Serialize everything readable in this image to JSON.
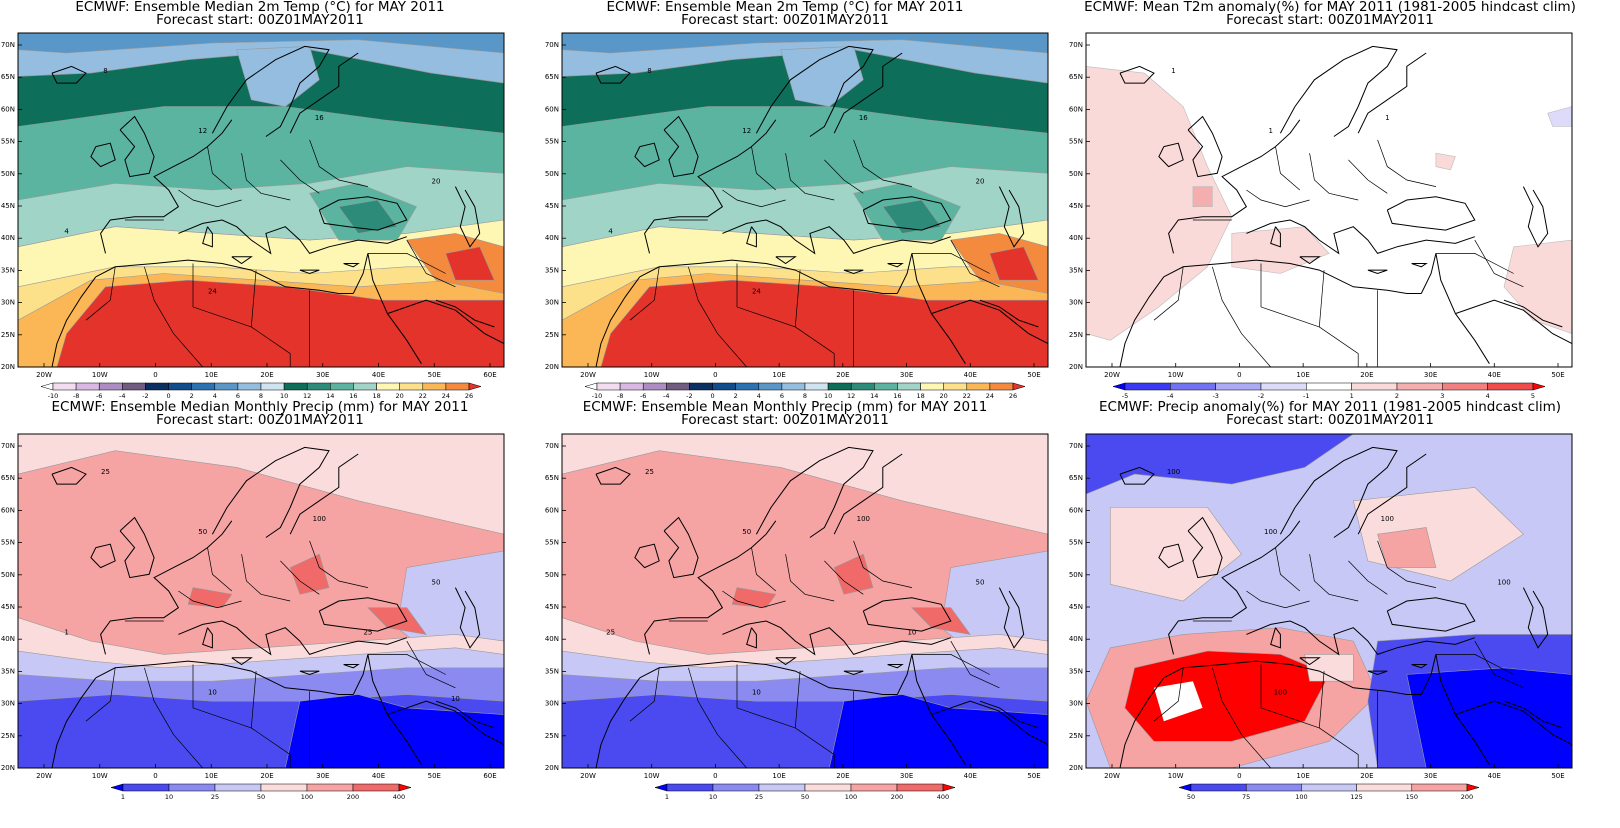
{
  "panels": [
    {
      "id": "p1",
      "title": "ECMWF: Ensemble Median 2m Temp (°C) for MAY 2011",
      "subtitle": "Forecast start: 00Z01MAY2011",
      "field": "temp",
      "lon_labels": [
        "20W",
        "10W",
        "0",
        "10E",
        "20E",
        "30E",
        "40E",
        "50E",
        "60E"
      ],
      "lat_labels": [
        "70N",
        "65N",
        "60N",
        "55N",
        "50N",
        "45N",
        "40N",
        "35N",
        "30N",
        "25N",
        "20N"
      ],
      "colorbar": {
        "labels": [
          "-10",
          "-8",
          "-6",
          "-4",
          "-2",
          "0",
          "2",
          "4",
          "6",
          "8",
          "10",
          "12",
          "14",
          "16",
          "18",
          "20",
          "22",
          "24",
          "26"
        ],
        "colors": [
          "#ffffff",
          "#f1dcf0",
          "#dbb7e3",
          "#ad8cc4",
          "#6f5c80",
          "#0b2f63",
          "#114d8c",
          "#2b72b3",
          "#5997c9",
          "#94bde0",
          "#d0e3f1",
          "#0d6f5a",
          "#2d8c79",
          "#5ab4a0",
          "#a0d4c7",
          "#fdf7b3",
          "#fde08a",
          "#fbb755",
          "#f38a3e",
          "#e4332a"
        ]
      },
      "contour_labels": [
        "8",
        "12",
        "16",
        "20",
        "24",
        "4"
      ]
    },
    {
      "id": "p2",
      "title": "ECMWF: Ensemble Mean 2m Temp (°C) for MAY 2011",
      "subtitle": "Forecast start: 00Z01MAY2011",
      "field": "temp",
      "lon_labels": [
        "20W",
        "10W",
        "0",
        "10E",
        "20E",
        "30E",
        "40E",
        "50E"
      ],
      "lat_labels": [
        "70N",
        "65N",
        "60N",
        "55N",
        "50N",
        "45N",
        "40N",
        "35N",
        "30N",
        "25N",
        "20N"
      ],
      "colorbar": {
        "labels": [
          "-10",
          "-8",
          "-6",
          "-4",
          "-2",
          "0",
          "2",
          "4",
          "6",
          "8",
          "10",
          "12",
          "14",
          "16",
          "18",
          "20",
          "22",
          "24",
          "26"
        ],
        "colors": [
          "#ffffff",
          "#f1dcf0",
          "#dbb7e3",
          "#ad8cc4",
          "#6f5c80",
          "#0b2f63",
          "#114d8c",
          "#2b72b3",
          "#5997c9",
          "#94bde0",
          "#d0e3f1",
          "#0d6f5a",
          "#2d8c79",
          "#5ab4a0",
          "#a0d4c7",
          "#fdf7b3",
          "#fde08a",
          "#fbb755",
          "#f38a3e",
          "#e4332a"
        ]
      },
      "contour_labels": [
        "8",
        "12",
        "16",
        "20",
        "24",
        "4"
      ]
    },
    {
      "id": "p3",
      "title": "ECMWF: Mean T2m anomaly(%) for MAY 2011 (1981-2005 hindcast clim)",
      "subtitle": "Forecast start: 00Z01MAY2011",
      "field": "tanom",
      "lon_labels": [
        "20W",
        "10W",
        "0",
        "10E",
        "20E",
        "30E",
        "40E",
        "50E"
      ],
      "lat_labels": [
        "70N",
        "65N",
        "60N",
        "55N",
        "50N",
        "45N",
        "40N",
        "35N",
        "30N",
        "25N",
        "20N"
      ],
      "colorbar": {
        "labels": [
          "-5",
          "-4",
          "-3",
          "-2",
          "-1",
          "1",
          "2",
          "3",
          "4",
          "5"
        ],
        "colors": [
          "#0000ff",
          "#3a3af6",
          "#7272f2",
          "#aaaaf5",
          "#dcdcfa",
          "#ffffff",
          "#fad9d9",
          "#f5aeae",
          "#f28080",
          "#f04c4c",
          "#ff0000"
        ]
      },
      "contour_labels": [
        "1",
        "1",
        "1"
      ]
    },
    {
      "id": "p4",
      "title": "ECMWF: Ensemble Median Monthly Precip (mm) for MAY 2011",
      "subtitle": "Forecast start: 00Z01MAY2011",
      "field": "precip",
      "lon_labels": [
        "20W",
        "10W",
        "0",
        "10E",
        "20E",
        "30E",
        "40E",
        "50E",
        "60E"
      ],
      "lat_labels": [
        "70N",
        "65N",
        "60N",
        "55N",
        "50N",
        "45N",
        "40N",
        "35N",
        "30N",
        "25N",
        "20N"
      ],
      "colorbar": {
        "labels": [
          "1",
          "10",
          "25",
          "50",
          "100",
          "200",
          "400"
        ],
        "colors": [
          "#0000ff",
          "#4a4af0",
          "#8a8af0",
          "#c8c8f6",
          "#fbdcdc",
          "#f5a3a3",
          "#f06a6a",
          "#ff0000"
        ]
      },
      "contour_labels": [
        "25",
        "50",
        "100",
        "50",
        "10",
        "1",
        "25",
        "10"
      ]
    },
    {
      "id": "p5",
      "title": "ECMWF: Ensemble Mean Monthly Precip (mm) for MAY 2011",
      "subtitle": "Forecast start: 00Z01MAY2011",
      "field": "precip",
      "lon_labels": [
        "20W",
        "10W",
        "0",
        "10E",
        "20E",
        "30E",
        "40E",
        "50E"
      ],
      "lat_labels": [
        "70N",
        "65N",
        "60N",
        "55N",
        "50N",
        "45N",
        "40N",
        "35N",
        "30N",
        "25N",
        "20N"
      ],
      "colorbar": {
        "labels": [
          "1",
          "10",
          "25",
          "50",
          "100",
          "200",
          "400"
        ],
        "colors": [
          "#0000ff",
          "#4a4af0",
          "#8a8af0",
          "#c8c8f6",
          "#fbdcdc",
          "#f5a3a3",
          "#f06a6a",
          "#ff0000"
        ]
      },
      "contour_labels": [
        "25",
        "50",
        "100",
        "50",
        "10",
        "25",
        "10"
      ]
    },
    {
      "id": "p6",
      "title": "ECMWF: Precip anomaly(%) for MAY 2011 (1981-2005 hindcast clim)",
      "subtitle": "Forecast start: 00Z01MAY2011",
      "field": "panom",
      "lon_labels": [
        "20W",
        "10W",
        "0",
        "10E",
        "20E",
        "30E",
        "40E",
        "50E"
      ],
      "lat_labels": [
        "70N",
        "65N",
        "60N",
        "55N",
        "50N",
        "45N",
        "40N",
        "35N",
        "30N",
        "25N",
        "20N"
      ],
      "colorbar": {
        "labels": [
          "50",
          "75",
          "100",
          "125",
          "150",
          "200"
        ],
        "colors": [
          "#0000ff",
          "#4a4af0",
          "#8a8af0",
          "#c8c8f6",
          "#fbdcdc",
          "#f5a3a3",
          "#ff0000"
        ]
      },
      "contour_labels": [
        "100",
        "100",
        "100",
        "100",
        "100"
      ]
    }
  ]
}
